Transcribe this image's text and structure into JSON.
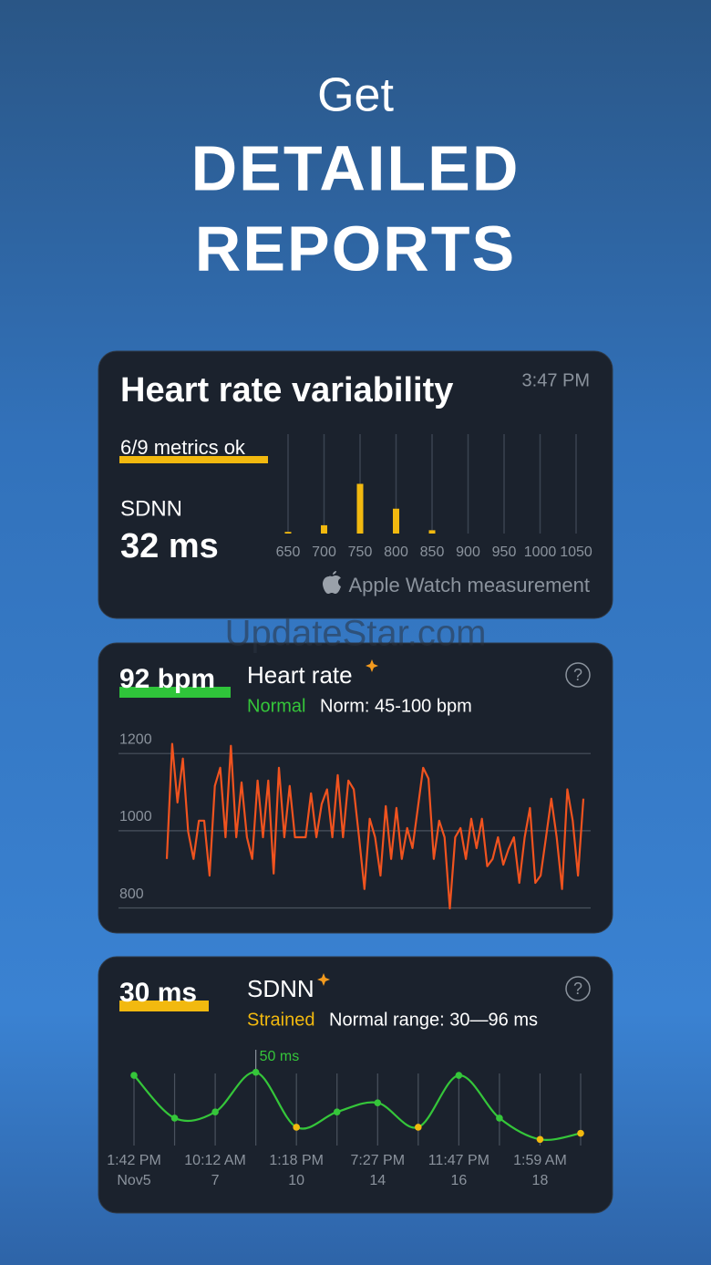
{
  "header": {
    "line1": "Get",
    "line2": "DETAILED",
    "line3": "REPORTS"
  },
  "watermark": "UpdateStar.com",
  "hrv_card": {
    "title": "Heart rate variability",
    "time": "3:47 PM",
    "metrics": "6/9 metrics ok",
    "metric_label": "SDNN",
    "metric_value": "32 ms",
    "source": "Apple Watch measurement"
  },
  "hr_card": {
    "value": "92 bpm",
    "title": "Heart rate",
    "status": "Normal",
    "norm": "Norm: 45-100 bpm",
    "help": "?"
  },
  "sdnn_card": {
    "value": "30 ms",
    "title": "SDNN",
    "status": "Strained",
    "range": "Normal range: 30—96 ms",
    "help": "?"
  },
  "chart_data": [
    {
      "type": "bar",
      "x": [
        650,
        700,
        750,
        800,
        850
      ],
      "values": [
        1,
        5,
        30,
        15,
        2
      ],
      "color": "#f2b90f",
      "xlim": [
        650,
        1050
      ],
      "xticks": [
        650,
        700,
        750,
        800,
        850,
        900,
        950,
        1000,
        1050
      ],
      "ylim": [
        0,
        60
      ],
      "grid": true
    },
    {
      "type": "line",
      "color": "#f0531f",
      "ylim": [
        780,
        1250
      ],
      "yticks": [
        800,
        1000,
        1200
      ],
      "grid": true,
      "values": [
        927,
        1225,
        1073,
        1187,
        998,
        927,
        1026,
        1026,
        884,
        1116,
        1163,
        983,
        1220,
        983,
        1125,
        983,
        927,
        1130,
        983,
        1130,
        889,
        1163,
        983,
        1116,
        983,
        983,
        983,
        1097,
        983,
        1069,
        1107,
        983,
        1144,
        983,
        1130,
        1107,
        983,
        849,
        1031,
        983,
        884,
        1064,
        927,
        1059,
        927,
        1007,
        955,
        1059,
        1163,
        1135,
        927,
        1026,
        983,
        799,
        983,
        1007,
        927,
        1031,
        955,
        1031,
        908,
        927,
        983,
        912,
        953,
        983,
        865,
        983,
        1059,
        865,
        884,
        983,
        1083,
        983,
        849,
        1107,
        1026,
        884,
        1083
      ]
    },
    {
      "type": "smooth-line",
      "color": "#35c63a",
      "ylim": [
        26,
        55
      ],
      "grid": true,
      "categories": [
        "1:42 PM",
        null,
        "10:12 AM",
        null,
        "1:18 PM",
        null,
        "7:27 PM",
        null,
        "11:47 PM",
        null,
        "1:59 AM",
        null
      ],
      "sublabels": [
        "Nov5",
        null,
        "7",
        null,
        "10",
        null,
        "14",
        null,
        "16",
        null,
        "18",
        null
      ],
      "values": [
        49,
        35,
        37,
        50,
        32,
        37,
        40,
        32,
        49,
        35,
        28,
        30
      ],
      "point_colors": [
        "#35c63a",
        "#35c63a",
        "#35c63a",
        "#35c63a",
        "#f2b90f",
        "#35c63a",
        "#35c63a",
        "#f2b90f",
        "#35c63a",
        "#35c63a",
        "#f2b90f",
        "#f2b90f"
      ],
      "annotation": {
        "text": "50 ms",
        "index": 3
      }
    }
  ]
}
